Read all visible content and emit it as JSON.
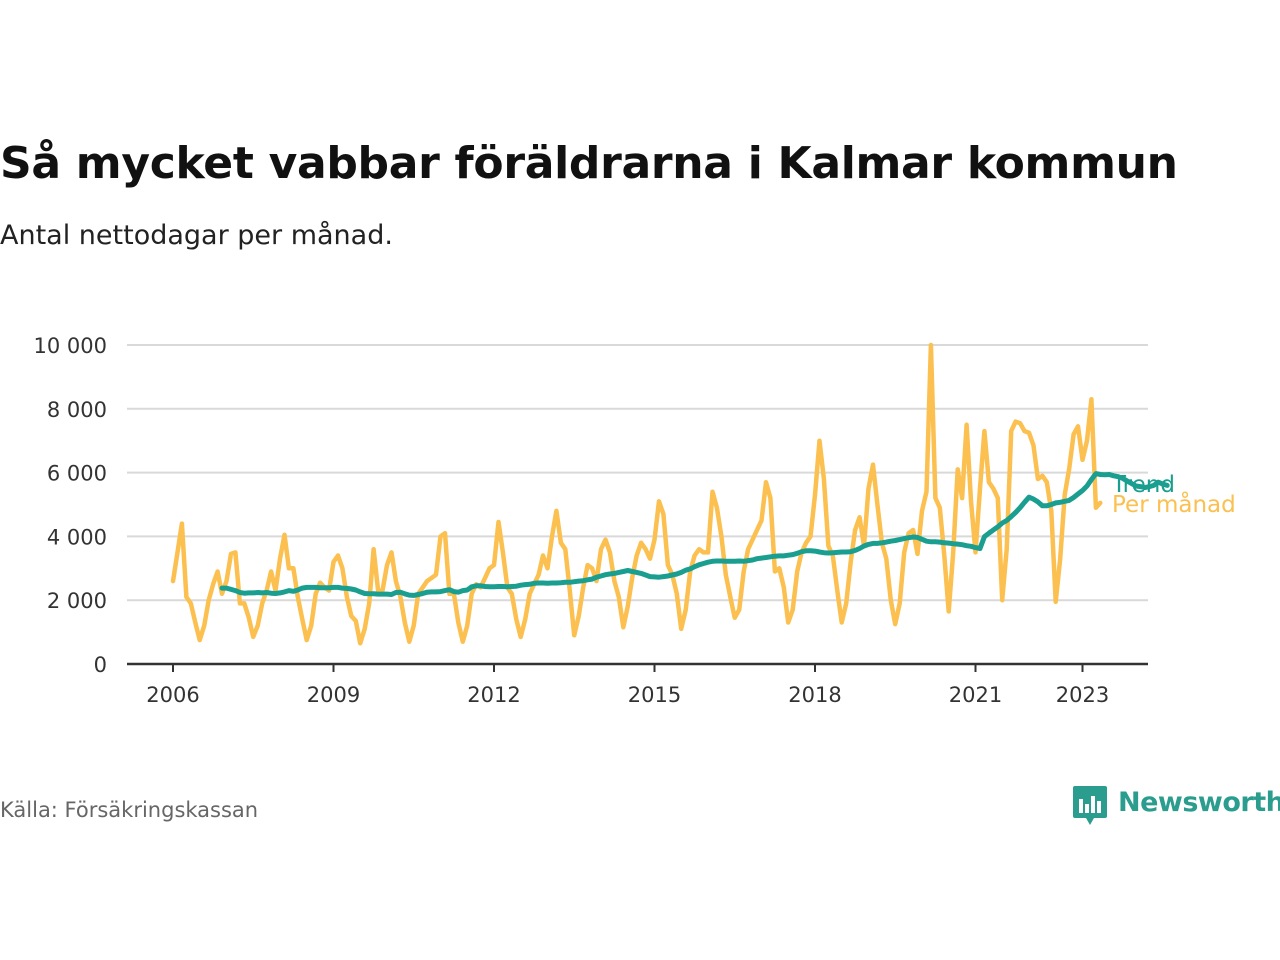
{
  "title": "Så mycket vabbar föräldrarna i Kalmar kommun",
  "subtitle": "Antal nettodagar per månad.",
  "source": "Källa: Försäkringskassan",
  "brand": "Newsworthy",
  "colors": {
    "monthly": "#fbc04f",
    "trend": "#1a9e8f",
    "grid": "#d9d9d9",
    "axis": "#333333",
    "brand": "#2a9d8f"
  },
  "chart_data": {
    "type": "line",
    "title": "Så mycket vabbar föräldrarna i Kalmar kommun",
    "subtitle": "Antal nettodagar per månad.",
    "xlabel": "",
    "ylabel": "",
    "xlim": [
      2006,
      2024.4
    ],
    "ylim": [
      0,
      10000
    ],
    "y_ticks": [
      0,
      2000,
      4000,
      6000,
      8000,
      10000
    ],
    "y_tick_labels": [
      "0",
      "2 000",
      "4 000",
      "6 000",
      "8 000",
      "10 000"
    ],
    "x_ticks": [
      2006,
      2009,
      2012,
      2015,
      2018,
      2021,
      2023
    ],
    "x_tick_labels": [
      "2006",
      "2009",
      "2012",
      "2015",
      "2018",
      "2021",
      "2023"
    ],
    "grid": true,
    "legend": "inline-right",
    "series": [
      {
        "name": "Per månad",
        "color": "#fbc04f",
        "start": 2006.0,
        "step": 0.0833333,
        "values": [
          2600,
          3500,
          4400,
          2100,
          1900,
          1300,
          750,
          1200,
          2000,
          2500,
          2900,
          2200,
          2600,
          3450,
          3500,
          1900,
          1900,
          1450,
          850,
          1200,
          1900,
          2300,
          2900,
          2300,
          3300,
          4050,
          3000,
          3000,
          2100,
          1400,
          750,
          1200,
          2200,
          2550,
          2400,
          2300,
          3200,
          3400,
          3000,
          2100,
          1500,
          1350,
          650,
          1100,
          1900,
          3600,
          2300,
          2300,
          3100,
          3500,
          2600,
          2100,
          1300,
          700,
          1200,
          2200,
          2400,
          2600,
          2700,
          2800,
          4000,
          4100,
          2200,
          2200,
          1300,
          700,
          1200,
          2200,
          2500,
          2400,
          2700,
          3000,
          3100,
          4450,
          3500,
          2400,
          2200,
          1400,
          850,
          1400,
          2200,
          2500,
          2800,
          3400,
          3000,
          4000,
          4800,
          3800,
          3600,
          2300,
          900,
          1500,
          2400,
          3100,
          3000,
          2600,
          3600,
          3900,
          3500,
          2600,
          2100,
          1150,
          1800,
          2700,
          3400,
          3800,
          3600,
          3300,
          3900,
          5100,
          4700,
          3100,
          2800,
          2200,
          1100,
          1700,
          2900,
          3400,
          3600,
          3500,
          3500,
          5400,
          4900,
          4000,
          2800,
          2100,
          1450,
          1700,
          2900,
          3600,
          3900,
          4200,
          4500,
          5700,
          5200,
          2900,
          3000,
          2400,
          1300,
          1700,
          2900,
          3500,
          3800,
          4000,
          5300,
          7000,
          5800,
          3700,
          3400,
          2300,
          1300,
          1900,
          3200,
          4200,
          4600,
          3700,
          5500,
          6250,
          5000,
          3800,
          3300,
          2000,
          1250,
          1900,
          3500,
          4100,
          4200,
          3450,
          4800,
          5400,
          10000,
          5200,
          4900,
          3400,
          1650,
          3500,
          6100,
          5200,
          7500,
          5100,
          3500,
          5500,
          7300,
          5700,
          5500,
          5200,
          2000,
          3600,
          7300,
          7600,
          7550,
          7300,
          7250,
          6850,
          5800,
          5900,
          5700,
          4800,
          1950,
          3300,
          5300,
          6100,
          7200,
          7450,
          6400,
          7000,
          8300,
          4900,
          5050
        ]
      },
      {
        "name": "Trend",
        "color": "#1a9e8f",
        "start": 2006.9167,
        "step": 0.0833333,
        "values": [
          2380,
          2380,
          2340,
          2300,
          2240,
          2220,
          2230,
          2230,
          2240,
          2230,
          2240,
          2220,
          2210,
          2230,
          2260,
          2300,
          2280,
          2320,
          2380,
          2400,
          2400,
          2400,
          2390,
          2390,
          2390,
          2400,
          2400,
          2380,
          2370,
          2350,
          2320,
          2260,
          2210,
          2200,
          2200,
          2190,
          2190,
          2190,
          2180,
          2240,
          2250,
          2200,
          2160,
          2150,
          2180,
          2210,
          2250,
          2260,
          2260,
          2270,
          2300,
          2330,
          2270,
          2250,
          2300,
          2320,
          2420,
          2450,
          2450,
          2430,
          2420,
          2420,
          2430,
          2430,
          2420,
          2430,
          2440,
          2470,
          2490,
          2500,
          2530,
          2540,
          2540,
          2530,
          2540,
          2540,
          2550,
          2560,
          2560,
          2580,
          2600,
          2610,
          2640,
          2660,
          2720,
          2760,
          2800,
          2820,
          2840,
          2870,
          2900,
          2930,
          2900,
          2870,
          2840,
          2790,
          2740,
          2730,
          2720,
          2740,
          2760,
          2790,
          2820,
          2870,
          2940,
          2980,
          3050,
          3110,
          3150,
          3190,
          3220,
          3230,
          3230,
          3220,
          3220,
          3220,
          3230,
          3220,
          3240,
          3260,
          3300,
          3320,
          3340,
          3360,
          3380,
          3390,
          3390,
          3410,
          3430,
          3470,
          3520,
          3550,
          3550,
          3540,
          3510,
          3490,
          3480,
          3490,
          3500,
          3510,
          3510,
          3520,
          3560,
          3620,
          3700,
          3750,
          3780,
          3780,
          3800,
          3820,
          3850,
          3870,
          3900,
          3930,
          3960,
          3980,
          3970,
          3910,
          3850,
          3830,
          3830,
          3820,
          3800,
          3790,
          3770,
          3760,
          3740,
          3710,
          3690,
          3650,
          3620,
          3990,
          4100,
          4200,
          4300,
          4420,
          4500,
          4620,
          4750,
          4900,
          5070,
          5230,
          5170,
          5080,
          4960,
          4960,
          5000,
          5050,
          5070,
          5100,
          5130,
          5220,
          5330,
          5440,
          5580,
          5780,
          5970,
          5940,
          5930,
          5940,
          5900,
          5870,
          5820,
          5740,
          5660,
          5580,
          5560,
          5530,
          5560,
          5600,
          5700,
          5640,
          5600
        ]
      }
    ]
  }
}
